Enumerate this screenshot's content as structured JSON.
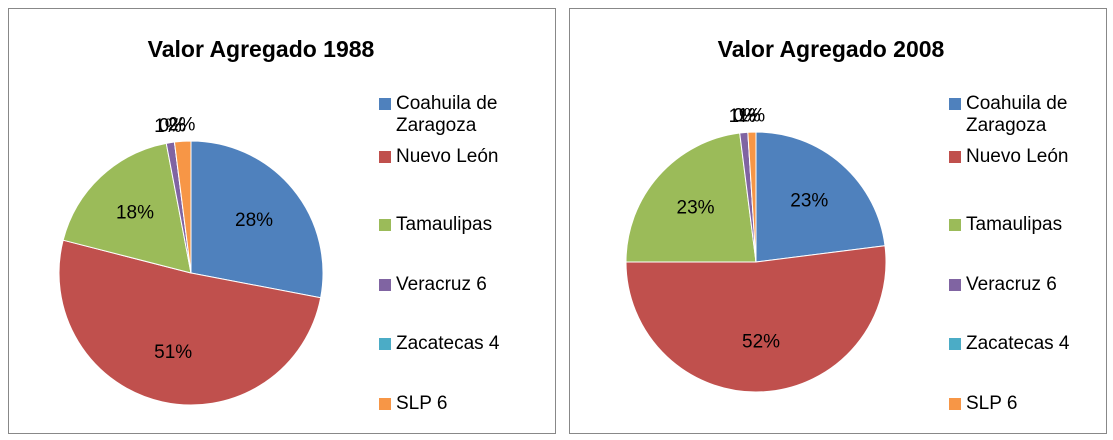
{
  "chart_data": [
    {
      "type": "pie",
      "title": "Valor Agregado 1988",
      "categories": [
        "Coahuila de Zaragoza",
        "Nuevo León",
        "Tamaulipas",
        "Veracruz 6",
        "Zacatecas 4",
        "SLP 6"
      ],
      "values": [
        28,
        51,
        18,
        1,
        0,
        2
      ],
      "value_labels": [
        "28%",
        "51%",
        "18%",
        "1%",
        "0%",
        "2%"
      ],
      "colors": [
        "#4f81bd",
        "#c0504d",
        "#9bbb59",
        "#8064a2",
        "#4bacc6",
        "#f79646"
      ]
    },
    {
      "type": "pie",
      "title": "Valor Agregado 2008",
      "categories": [
        "Coahuila de Zaragoza",
        "Nuevo León",
        "Tamaulipas",
        "Veracruz 6",
        "Zacatecas 4",
        "SLP 6"
      ],
      "values": [
        23,
        52,
        23,
        1,
        0,
        1
      ],
      "value_labels": [
        "23%",
        "52%",
        "23%",
        "1%",
        "0%",
        "1%"
      ],
      "colors": [
        "#4f81bd",
        "#c0504d",
        "#9bbb59",
        "#8064a2",
        "#4bacc6",
        "#f79646"
      ]
    }
  ]
}
